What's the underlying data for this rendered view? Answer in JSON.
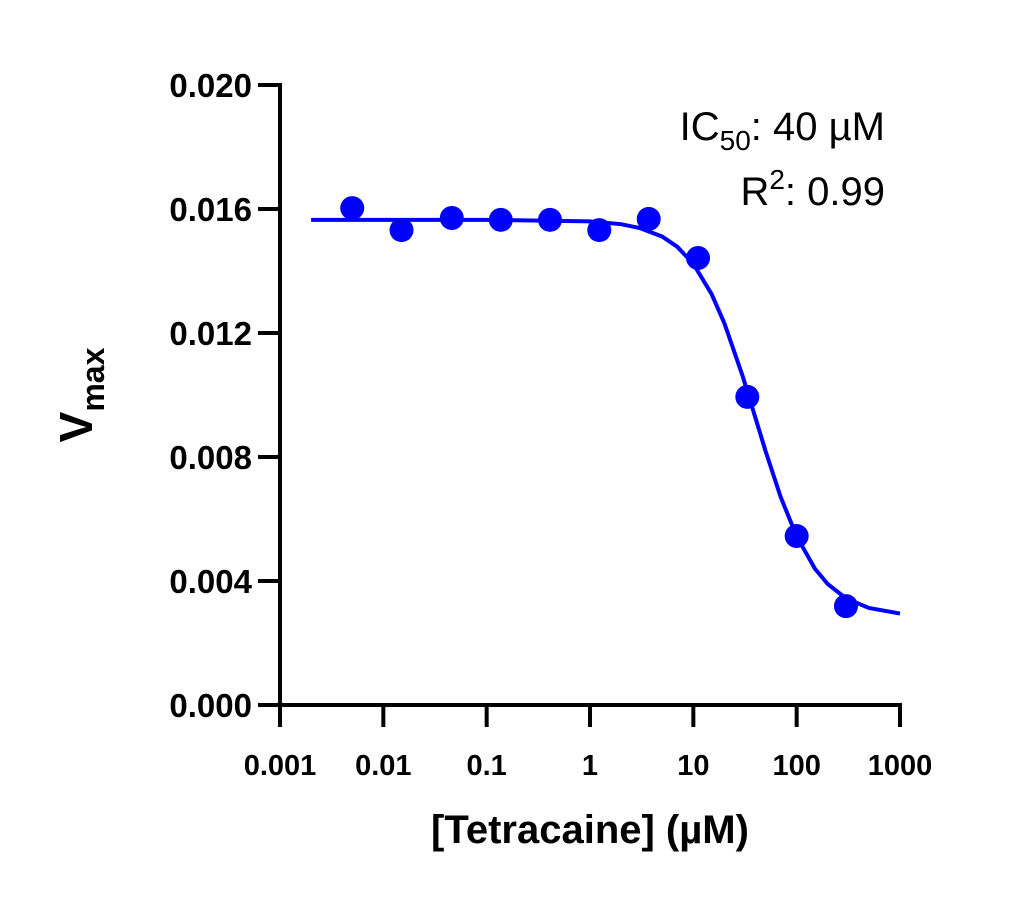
{
  "chart_data": {
    "type": "scatter",
    "xlabel": "[Tetracaine] (µM)",
    "ylabel": {
      "text": "V",
      "sub": "max"
    },
    "annotations": [
      {
        "base": "IC",
        "sub": "50",
        "rest": ": 40 µM"
      },
      {
        "base": "R",
        "sup": "2",
        "rest": ": 0.99"
      }
    ],
    "xscale": "log",
    "xlim": [
      0.001,
      1000
    ],
    "xticks": [
      0.001,
      0.01,
      0.1,
      1,
      10,
      100,
      1000
    ],
    "ylim": [
      0,
      0.02
    ],
    "yticks": [
      {
        "value": 0,
        "label": "0.000"
      },
      0.004,
      0.008,
      0.012,
      0.016,
      {
        "value": 0.02,
        "label": "0.020"
      }
    ],
    "series": [
      {
        "type": "scatter",
        "color": "#0000ff",
        "x": [
          0.005,
          0.015,
          0.046,
          0.137,
          0.41,
          1.23,
          3.7,
          11.1,
          33.3,
          100,
          300
        ],
        "values": [
          0.01603,
          0.01532,
          0.01571,
          0.01565,
          0.01565,
          0.01532,
          0.01568,
          0.01442,
          0.00994,
          0.00545,
          0.00319
        ]
      },
      {
        "type": "line",
        "color": "#0000ff",
        "x": [
          0.002,
          0.01,
          0.1,
          1,
          2,
          3,
          5,
          7,
          10,
          15,
          20,
          30,
          40,
          50,
          70,
          100,
          150,
          200,
          300,
          500,
          1000
        ],
        "values": [
          0.01565,
          0.01565,
          0.01565,
          0.0156,
          0.01551,
          0.01539,
          0.01511,
          0.01478,
          0.01423,
          0.01326,
          0.01231,
          0.01061,
          0.00925,
          0.00819,
          0.00671,
          0.00544,
          0.0044,
          0.0039,
          0.00344,
          0.00313,
          0.00295
        ]
      }
    ]
  }
}
